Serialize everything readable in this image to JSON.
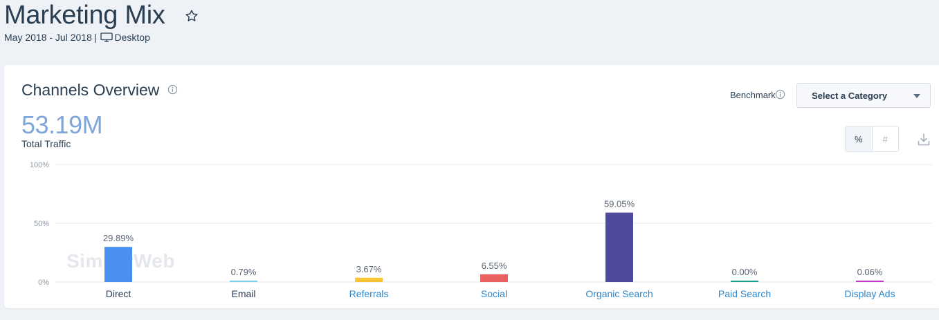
{
  "header": {
    "title": "Marketing Mix",
    "date_range": "May 2018 - Jul 2018",
    "separator": "|",
    "device": "Desktop"
  },
  "card": {
    "title": "Channels Overview",
    "total_value": "53.19M",
    "total_label": "Total Traffic",
    "benchmark_label": "Benchmark",
    "category_select": "Select a Category",
    "toggle_percent": "%",
    "toggle_count": "#",
    "watermark": "SimilarWeb"
  },
  "colors": {
    "link": "#2f86c9",
    "text": "#2a3e52"
  },
  "chart_data": {
    "type": "bar",
    "categories": [
      "Direct",
      "Email",
      "Referrals",
      "Social",
      "Organic Search",
      "Paid Search",
      "Display Ads"
    ],
    "values": [
      29.89,
      0.79,
      3.67,
      6.55,
      59.05,
      0.0,
      0.06
    ],
    "value_labels": [
      "29.89%",
      "0.79%",
      "3.67%",
      "6.55%",
      "59.05%",
      "0.00%",
      "0.06%"
    ],
    "colors": [
      "#4a90f0",
      "#7ed0e8",
      "#f5c333",
      "#e96262",
      "#4f4b9c",
      "#1aa08a",
      "#c33bc7"
    ],
    "category_is_link": [
      false,
      false,
      true,
      true,
      true,
      true,
      true
    ],
    "yticks": [
      "0%",
      "50%",
      "100%"
    ],
    "ytick_values": [
      0,
      50,
      100
    ],
    "ylim": [
      0,
      100
    ],
    "grid": true
  }
}
